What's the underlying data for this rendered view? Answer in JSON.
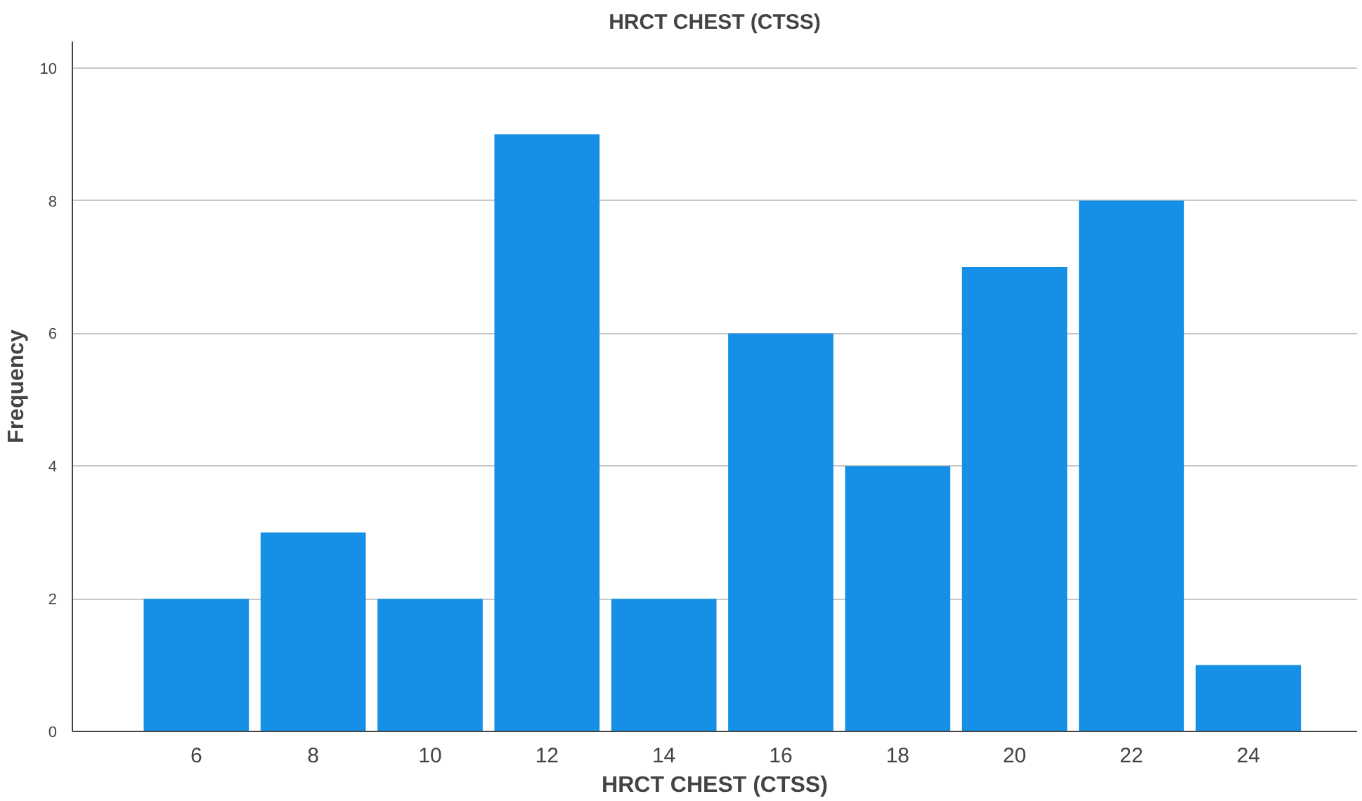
{
  "chart_data": {
    "type": "bar",
    "title": "HRCT CHEST (CTSS)",
    "xlabel": "HRCT CHEST (CTSS)",
    "ylabel": "Frequency",
    "categories": [
      "6",
      "8",
      "10",
      "12",
      "14",
      "16",
      "18",
      "20",
      "22",
      "24"
    ],
    "values": [
      2,
      3,
      2,
      9,
      2,
      6,
      4,
      7,
      8,
      1
    ],
    "color": "#1590e6",
    "ylim": [
      0,
      10.4
    ],
    "yticks": [
      0,
      2,
      4,
      6,
      8,
      10
    ],
    "grid": "y"
  }
}
